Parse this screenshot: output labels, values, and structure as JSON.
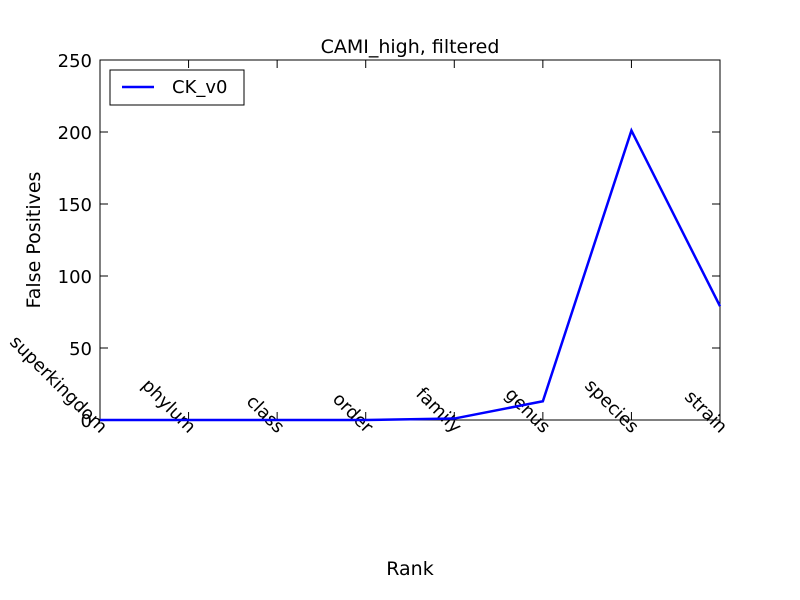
{
  "chart_data": {
    "type": "line",
    "title": "CAMI_high, filtered",
    "xlabel": "Rank",
    "ylabel": "False Positives",
    "categories": [
      "superkingdom",
      "phylum",
      "class",
      "order",
      "family",
      "genus",
      "species",
      "strain"
    ],
    "ylim": [
      0,
      250
    ],
    "yticks": [
      0,
      50,
      100,
      150,
      200,
      250
    ],
    "grid": false,
    "legend_position": "top-left",
    "series": [
      {
        "name": "CK_v0",
        "color": "#0000ff",
        "values": [
          0,
          0,
          0,
          0,
          1,
          13,
          201,
          79
        ]
      }
    ]
  }
}
